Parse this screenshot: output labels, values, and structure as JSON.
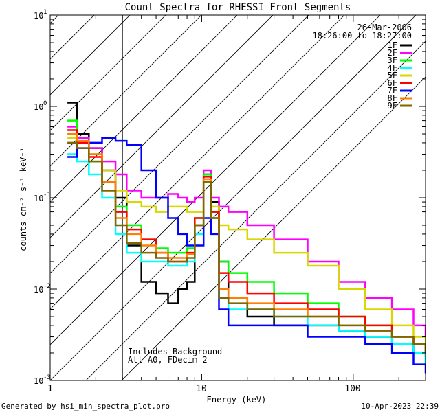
{
  "chart_data": {
    "type": "line",
    "title": "Count Spectra for RHESSI Front Segments",
    "xlabel": "Energy (keV)",
    "ylabel": "counts cm⁻² s⁻¹ keV⁻¹",
    "xscale": "log",
    "yscale": "log",
    "xlim": [
      1,
      300
    ],
    "ylim": [
      0.001,
      10
    ],
    "x_ticks": [
      {
        "value": 1,
        "label": "1"
      },
      {
        "value": 10,
        "label": "10"
      },
      {
        "value": 100,
        "label": "100"
      }
    ],
    "y_ticks": [
      {
        "value": 0.001,
        "base": "10",
        "exp": "-3"
      },
      {
        "value": 0.01,
        "base": "10",
        "exp": "-2"
      },
      {
        "value": 0.1,
        "base": "10",
        "exp": "-1"
      },
      {
        "value": 1,
        "base": "10",
        "exp": "0"
      },
      {
        "value": 10,
        "base": "10",
        "exp": "1"
      }
    ],
    "shaded_region": {
      "from": 1,
      "to": 3,
      "pattern": "hatched"
    },
    "info_date": "26-Mar-2006",
    "info_time": "18:26:00 to 18:27:00",
    "annotation_lines": [
      "Includes Background",
      "Att A0, FDecim 2"
    ],
    "series": [
      {
        "name": "1F",
        "color": "#000000",
        "points": [
          [
            1.3,
            1.1
          ],
          [
            1.5,
            0.5
          ],
          [
            1.8,
            0.35
          ],
          [
            2.2,
            0.2
          ],
          [
            2.7,
            0.1
          ],
          [
            3.2,
            0.03
          ],
          [
            4,
            0.012
          ],
          [
            5,
            0.009
          ],
          [
            6,
            0.007
          ],
          [
            7,
            0.01
          ],
          [
            8,
            0.012
          ],
          [
            9,
            0.05
          ],
          [
            10.3,
            0.18
          ],
          [
            11.5,
            0.09
          ],
          [
            13,
            0.02
          ],
          [
            15,
            0.008
          ],
          [
            20,
            0.005
          ],
          [
            30,
            0.004
          ],
          [
            50,
            0.004
          ],
          [
            80,
            0.0035
          ],
          [
            120,
            0.003
          ],
          [
            180,
            0.0025
          ],
          [
            250,
            0.002
          ],
          [
            300,
            0.0018
          ]
        ]
      },
      {
        "name": "2F",
        "color": "#ff00ff",
        "points": [
          [
            1.3,
            0.6
          ],
          [
            1.5,
            0.45
          ],
          [
            1.8,
            0.35
          ],
          [
            2.2,
            0.25
          ],
          [
            2.7,
            0.18
          ],
          [
            3.2,
            0.12
          ],
          [
            4,
            0.1
          ],
          [
            5,
            0.1
          ],
          [
            6,
            0.11
          ],
          [
            7,
            0.1
          ],
          [
            8,
            0.09
          ],
          [
            9,
            0.1
          ],
          [
            10.3,
            0.2
          ],
          [
            11.5,
            0.1
          ],
          [
            13,
            0.08
          ],
          [
            15,
            0.07
          ],
          [
            20,
            0.05
          ],
          [
            30,
            0.035
          ],
          [
            50,
            0.02
          ],
          [
            80,
            0.012
          ],
          [
            120,
            0.008
          ],
          [
            180,
            0.006
          ],
          [
            250,
            0.004
          ],
          [
            300,
            0.003
          ]
        ]
      },
      {
        "name": "3F",
        "color": "#00ff00",
        "points": [
          [
            1.3,
            0.7
          ],
          [
            1.5,
            0.4
          ],
          [
            1.8,
            0.25
          ],
          [
            2.2,
            0.15
          ],
          [
            2.7,
            0.08
          ],
          [
            3.2,
            0.05
          ],
          [
            4,
            0.035
          ],
          [
            5,
            0.028
          ],
          [
            6,
            0.025
          ],
          [
            7,
            0.025
          ],
          [
            8,
            0.028
          ],
          [
            9,
            0.06
          ],
          [
            10.3,
            0.18
          ],
          [
            11.5,
            0.07
          ],
          [
            13,
            0.02
          ],
          [
            15,
            0.015
          ],
          [
            20,
            0.012
          ],
          [
            30,
            0.009
          ],
          [
            50,
            0.007
          ],
          [
            80,
            0.005
          ],
          [
            120,
            0.004
          ],
          [
            180,
            0.003
          ],
          [
            250,
            0.0025
          ],
          [
            300,
            0.0015
          ]
        ]
      },
      {
        "name": "4F",
        "color": "#00ffff",
        "points": [
          [
            1.3,
            0.3
          ],
          [
            1.5,
            0.25
          ],
          [
            1.8,
            0.18
          ],
          [
            2.2,
            0.1
          ],
          [
            2.7,
            0.04
          ],
          [
            3.2,
            0.025
          ],
          [
            4,
            0.02
          ],
          [
            5,
            0.02
          ],
          [
            6,
            0.018
          ],
          [
            7,
            0.018
          ],
          [
            8,
            0.02
          ],
          [
            9,
            0.04
          ],
          [
            10.3,
            0.15
          ],
          [
            11.5,
            0.06
          ],
          [
            13,
            0.008
          ],
          [
            15,
            0.006
          ],
          [
            20,
            0.006
          ],
          [
            30,
            0.005
          ],
          [
            50,
            0.004
          ],
          [
            80,
            0.0035
          ],
          [
            120,
            0.003
          ],
          [
            180,
            0.0025
          ],
          [
            250,
            0.002
          ],
          [
            300,
            0.0015
          ]
        ]
      },
      {
        "name": "5F",
        "color": "#d8d800",
        "points": [
          [
            1.3,
            0.45
          ],
          [
            1.5,
            0.4
          ],
          [
            1.8,
            0.3
          ],
          [
            2.2,
            0.2
          ],
          [
            2.7,
            0.12
          ],
          [
            3.2,
            0.09
          ],
          [
            4,
            0.08
          ],
          [
            5,
            0.07
          ],
          [
            6,
            0.08
          ],
          [
            7,
            0.08
          ],
          [
            8,
            0.07
          ],
          [
            9,
            0.07
          ],
          [
            10.3,
            0.15
          ],
          [
            11.5,
            0.08
          ],
          [
            13,
            0.05
          ],
          [
            15,
            0.045
          ],
          [
            20,
            0.035
          ],
          [
            30,
            0.025
          ],
          [
            50,
            0.018
          ],
          [
            80,
            0.01
          ],
          [
            120,
            0.006
          ],
          [
            180,
            0.004
          ],
          [
            250,
            0.003
          ],
          [
            300,
            0.0025
          ]
        ]
      },
      {
        "name": "6F",
        "color": "#ff0000",
        "points": [
          [
            1.3,
            0.55
          ],
          [
            1.5,
            0.4
          ],
          [
            1.8,
            0.28
          ],
          [
            2.2,
            0.15
          ],
          [
            2.7,
            0.07
          ],
          [
            3.2,
            0.045
          ],
          [
            4,
            0.035
          ],
          [
            5,
            0.025
          ],
          [
            6,
            0.02
          ],
          [
            7,
            0.02
          ],
          [
            8,
            0.025
          ],
          [
            9,
            0.06
          ],
          [
            10.3,
            0.17
          ],
          [
            11.5,
            0.07
          ],
          [
            13,
            0.015
          ],
          [
            15,
            0.012
          ],
          [
            20,
            0.009
          ],
          [
            30,
            0.007
          ],
          [
            50,
            0.006
          ],
          [
            80,
            0.005
          ],
          [
            120,
            0.004
          ],
          [
            180,
            0.003
          ],
          [
            250,
            0.0025
          ],
          [
            300,
            0.002
          ]
        ]
      },
      {
        "name": "7F",
        "color": "#0000ff",
        "points": [
          [
            1.3,
            0.28
          ],
          [
            1.5,
            0.35
          ],
          [
            1.8,
            0.4
          ],
          [
            2.2,
            0.45
          ],
          [
            2.7,
            0.42
          ],
          [
            3.2,
            0.38
          ],
          [
            4,
            0.2
          ],
          [
            5,
            0.1
          ],
          [
            6,
            0.06
          ],
          [
            7,
            0.04
          ],
          [
            8,
            0.03
          ],
          [
            9,
            0.03
          ],
          [
            10.3,
            0.06
          ],
          [
            11.5,
            0.04
          ],
          [
            13,
            0.006
          ],
          [
            15,
            0.004
          ],
          [
            20,
            0.004
          ],
          [
            30,
            0.004
          ],
          [
            50,
            0.003
          ],
          [
            80,
            0.003
          ],
          [
            120,
            0.0025
          ],
          [
            180,
            0.002
          ],
          [
            250,
            0.0015
          ],
          [
            300,
            0.0012
          ]
        ]
      },
      {
        "name": "8F",
        "color": "#ff8000",
        "points": [
          [
            1.3,
            0.5
          ],
          [
            1.5,
            0.42
          ],
          [
            1.8,
            0.3
          ],
          [
            2.2,
            0.15
          ],
          [
            2.7,
            0.06
          ],
          [
            3.2,
            0.04
          ],
          [
            4,
            0.03
          ],
          [
            5,
            0.025
          ],
          [
            6,
            0.022
          ],
          [
            7,
            0.022
          ],
          [
            8,
            0.024
          ],
          [
            9,
            0.05
          ],
          [
            10.3,
            0.16
          ],
          [
            11.5,
            0.06
          ],
          [
            13,
            0.01
          ],
          [
            15,
            0.008
          ],
          [
            20,
            0.007
          ],
          [
            30,
            0.006
          ],
          [
            50,
            0.005
          ],
          [
            80,
            0.004
          ],
          [
            120,
            0.0035
          ],
          [
            180,
            0.003
          ],
          [
            250,
            0.0025
          ],
          [
            300,
            0.002
          ]
        ]
      },
      {
        "name": "9F",
        "color": "#806600",
        "points": [
          [
            1.3,
            0.4
          ],
          [
            1.5,
            0.35
          ],
          [
            1.8,
            0.25
          ],
          [
            2.2,
            0.12
          ],
          [
            2.7,
            0.05
          ],
          [
            3.2,
            0.032
          ],
          [
            4,
            0.025
          ],
          [
            5,
            0.022
          ],
          [
            6,
            0.02
          ],
          [
            7,
            0.02
          ],
          [
            8,
            0.022
          ],
          [
            9,
            0.05
          ],
          [
            10.3,
            0.15
          ],
          [
            11.5,
            0.06
          ],
          [
            13,
            0.008
          ],
          [
            15,
            0.007
          ],
          [
            20,
            0.006
          ],
          [
            30,
            0.005
          ],
          [
            50,
            0.005
          ],
          [
            80,
            0.004
          ],
          [
            120,
            0.0035
          ],
          [
            180,
            0.003
          ],
          [
            250,
            0.0025
          ],
          [
            300,
            0.002
          ]
        ]
      }
    ]
  },
  "footer": {
    "generated_by": "Generated by hsi_min_spectra_plot.pro",
    "timestamp": "10-Apr-2023 22:39"
  }
}
